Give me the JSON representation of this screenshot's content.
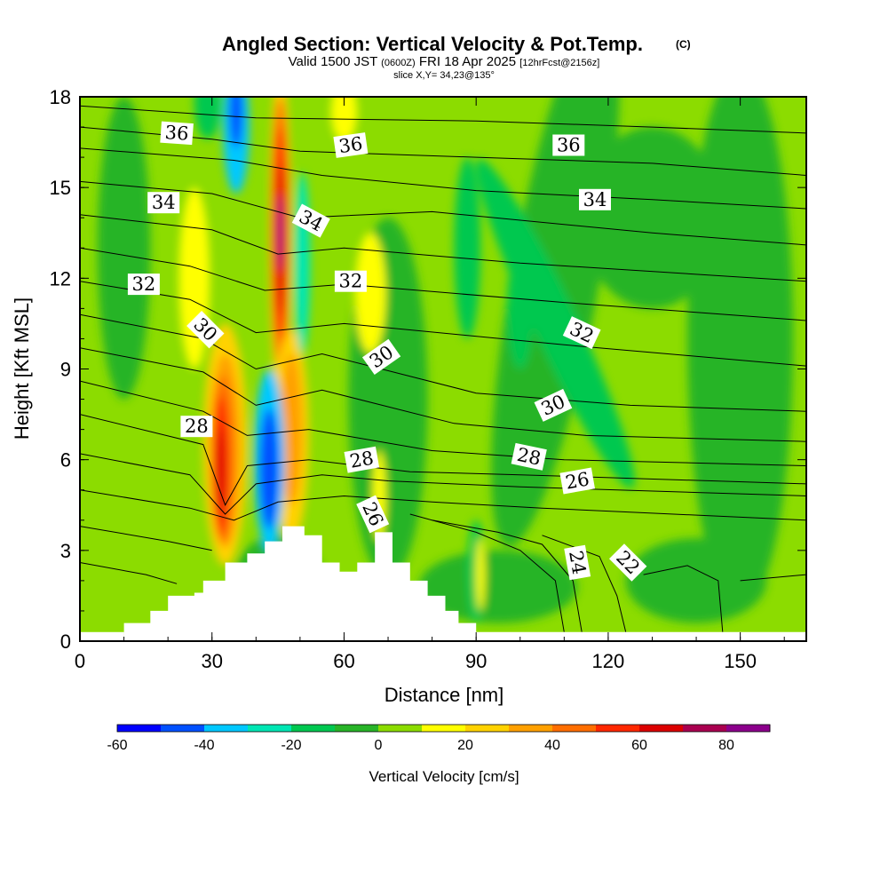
{
  "title": {
    "main": "Angled Section: Vertical Velocity & Pot.Temp.",
    "main_suffix": "(C)",
    "line2_a": "Valid 1500 JST",
    "line2_b": "(0600Z)",
    "line2_c": "FRI 18 Apr 2025",
    "line2_d": "[12hrFcst@2156z]",
    "line3": "slice X,Y= 34,23@135°"
  },
  "chart_data": {
    "type": "heatmap",
    "title": "Angled Section: Vertical Velocity & Pot.Temp. (C)",
    "xlabel": "Distance [nm]",
    "ylabel": "Height [Kft MSL]",
    "xlim": [
      0,
      165
    ],
    "ylim": [
      0,
      18
    ],
    "xticks": [
      "0",
      "30",
      "60",
      "90",
      "120",
      "150"
    ],
    "yticks": [
      "0",
      "3",
      "6",
      "9",
      "12",
      "15",
      "18"
    ],
    "colorbar": {
      "label": "Vertical Velocity [cm/s]",
      "range": [
        -60,
        90
      ],
      "step": 10,
      "tick_labels": [
        "-60",
        "-40",
        "-20",
        "0",
        "20",
        "40",
        "60",
        "80"
      ],
      "colors": [
        "#0000ff",
        "#0050ff",
        "#00c8ff",
        "#00e6b4",
        "#00c850",
        "#28b428",
        "#8cdc00",
        "#ffff00",
        "#ffd200",
        "#ffa000",
        "#ff6e00",
        "#ff2800",
        "#dc0000",
        "#aa0050",
        "#8c008c"
      ]
    },
    "contour_series": "Potential temperature (C)",
    "contour_labels": [
      {
        "x": 22,
        "y": 16.8,
        "text": "36",
        "angle": -4
      },
      {
        "x": 19,
        "y": 14.5,
        "text": "34",
        "angle": 0
      },
      {
        "x": 14.5,
        "y": 11.8,
        "text": "32",
        "angle": 0
      },
      {
        "x": 28.5,
        "y": 10.3,
        "text": "30",
        "angle": -45
      },
      {
        "x": 26.5,
        "y": 7.1,
        "text": "28",
        "angle": 0
      },
      {
        "x": 61.5,
        "y": 16.4,
        "text": "36",
        "angle": 8
      },
      {
        "x": 52.5,
        "y": 13.9,
        "text": "34",
        "angle": -28
      },
      {
        "x": 61.5,
        "y": 11.9,
        "text": "32",
        "angle": 0
      },
      {
        "x": 68.5,
        "y": 9.4,
        "text": "30",
        "angle": 35
      },
      {
        "x": 64,
        "y": 6,
        "text": "28",
        "angle": 10
      },
      {
        "x": 66.5,
        "y": 4.2,
        "text": "26",
        "angle": -65
      },
      {
        "x": 111,
        "y": 16.4,
        "text": "36",
        "angle": 0
      },
      {
        "x": 117,
        "y": 14.6,
        "text": "34",
        "angle": 0
      },
      {
        "x": 114,
        "y": 10.2,
        "text": "32",
        "angle": -25
      },
      {
        "x": 107.5,
        "y": 7.8,
        "text": "30",
        "angle": 25
      },
      {
        "x": 102,
        "y": 6.1,
        "text": "28",
        "angle": -12
      },
      {
        "x": 113,
        "y": 5.3,
        "text": "26",
        "angle": 10
      },
      {
        "x": 113,
        "y": 2.6,
        "text": "24",
        "angle": -80
      },
      {
        "x": 124.5,
        "y": 2.6,
        "text": "22",
        "angle": -45
      }
    ],
    "terrain": [
      [
        10,
        0.6
      ],
      [
        16,
        1.0
      ],
      [
        20,
        1.5
      ],
      [
        26,
        1.6
      ],
      [
        28,
        2.0
      ],
      [
        33,
        2.6
      ],
      [
        38,
        2.9
      ],
      [
        42,
        3.3
      ],
      [
        46,
        3.8
      ],
      [
        51,
        3.5
      ],
      [
        55,
        2.6
      ],
      [
        59,
        2.3
      ],
      [
        63,
        2.6
      ],
      [
        67,
        3.6
      ],
      [
        71,
        2.6
      ],
      [
        75,
        2.0
      ],
      [
        79,
        1.5
      ],
      [
        83,
        1.0
      ],
      [
        86,
        0.6
      ],
      [
        90,
        0.3
      ],
      [
        165,
        0.3
      ]
    ]
  }
}
